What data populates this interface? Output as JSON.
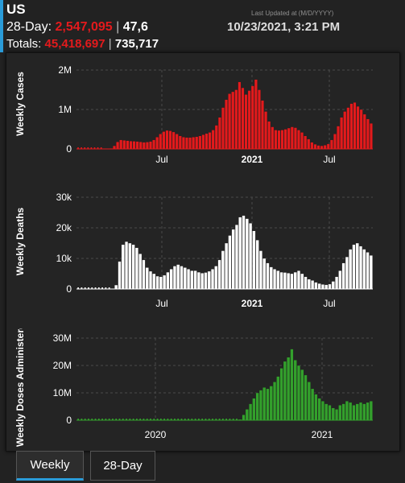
{
  "header": {
    "title": "US",
    "day28_label": "28-Day: ",
    "day28_cases": "2,547,095",
    "day28_sep": " | ",
    "day28_deaths": "47,6",
    "totals_label": "Totals: ",
    "totals_cases": "45,418,697",
    "totals_sep": " | ",
    "totals_deaths": "735,717",
    "updated_label": "Last Updated at (M/D/YYYY)",
    "updated_time": "10/23/2021, 3:21 PM"
  },
  "colors": {
    "accent": "#2a9bd8",
    "cases": "#e31a1c",
    "deaths": "#ffffff",
    "vaccines": "#33a02c"
  },
  "tabs": [
    {
      "label": "Weekly",
      "active": true
    },
    {
      "label": "28-Day",
      "active": false
    }
  ],
  "chart_data": [
    {
      "type": "bar",
      "ylabel": "Weekly Cases",
      "x_ticks": [
        "Jul",
        "2021",
        "Jul"
      ],
      "y_ticks": [
        "0",
        "1M",
        "2M"
      ],
      "ylim": [
        0,
        2000000
      ],
      "grid": true,
      "color": "#e31a1c",
      "x_start": "2020-01-22",
      "x_end": "2021-10-23",
      "values": [
        0,
        0,
        0,
        0,
        0,
        0,
        0,
        0,
        1000,
        5000,
        15000,
        80000,
        180000,
        230000,
        220000,
        210000,
        200000,
        195000,
        190000,
        180000,
        170000,
        175000,
        190000,
        230000,
        300000,
        380000,
        440000,
        470000,
        460000,
        430000,
        380000,
        330000,
        300000,
        290000,
        290000,
        300000,
        310000,
        330000,
        360000,
        390000,
        420000,
        480000,
        600000,
        800000,
        1050000,
        1250000,
        1400000,
        1450000,
        1500000,
        1700000,
        1550000,
        1380000,
        1480000,
        1600000,
        1760000,
        1500000,
        1230000,
        950000,
        700000,
        560000,
        480000,
        470000,
        480000,
        500000,
        530000,
        560000,
        540000,
        480000,
        420000,
        330000,
        250000,
        170000,
        120000,
        90000,
        80000,
        95000,
        130000,
        230000,
        380000,
        580000,
        800000,
        950000,
        1050000,
        1150000,
        1180000,
        1080000,
        1000000,
        880000,
        760000,
        650000
      ],
      "markers": 8
    },
    {
      "type": "bar",
      "ylabel": "Weekly Deaths",
      "x_ticks": [
        "Jul",
        "2021",
        "Jul"
      ],
      "y_ticks": [
        "0",
        "10k",
        "20k",
        "30k"
      ],
      "ylim": [
        0,
        30000
      ],
      "grid": true,
      "color": "#ffffff",
      "x_start": "2020-01-22",
      "x_end": "2021-10-23",
      "values": [
        0,
        0,
        0,
        0,
        0,
        0,
        0,
        0,
        0,
        0,
        60,
        1300,
        9000,
        14500,
        15500,
        15000,
        14500,
        13500,
        11500,
        9500,
        7000,
        5800,
        5000,
        4200,
        4000,
        4500,
        5500,
        6500,
        7500,
        8000,
        7500,
        7000,
        6500,
        6000,
        6000,
        5500,
        5200,
        5400,
        5800,
        6500,
        7500,
        9500,
        12500,
        15000,
        17500,
        19500,
        21000,
        23500,
        24000,
        23000,
        21500,
        19000,
        16000,
        12500,
        10000,
        8500,
        7200,
        6500,
        6000,
        5500,
        5400,
        5200,
        5000,
        5500,
        6000,
        5000,
        4000,
        3200,
        2800,
        2200,
        1800,
        1500,
        1400,
        1600,
        2500,
        4000,
        6000,
        8500,
        10500,
        13000,
        14500,
        15000,
        14000,
        13000,
        12000,
        11000
      ],
      "markers": 10
    },
    {
      "type": "bar",
      "ylabel": "Weekly Doses Administered",
      "x_ticks": [
        "2020",
        "2021"
      ],
      "y_ticks": [
        "0",
        "10M",
        "20M",
        "30M"
      ],
      "ylim": [
        0,
        30000000
      ],
      "grid": true,
      "color": "#33a02c",
      "x_start": "2020-01-22",
      "x_end": "2021-10-23",
      "values": [
        0,
        0,
        0,
        0,
        0,
        0,
        0,
        0,
        0,
        0,
        0,
        0,
        0,
        0,
        0,
        0,
        0,
        0,
        0,
        0,
        0,
        0,
        0,
        0,
        0,
        0,
        0,
        0,
        0,
        0,
        0,
        0,
        0,
        0,
        0,
        0,
        0,
        0,
        0,
        0,
        0,
        0,
        0,
        0,
        0,
        0,
        0,
        300000,
        2000000,
        4000000,
        6000000,
        8000000,
        10000000,
        11000000,
        12000000,
        11500000,
        12500000,
        14000000,
        16000000,
        19000000,
        21500000,
        23000000,
        26000000,
        22000000,
        20000000,
        18500000,
        16500000,
        14000000,
        11500000,
        9500000,
        8000000,
        7000000,
        6000000,
        5500000,
        4500000,
        4000000,
        5500000,
        6000000,
        7000000,
        6500000,
        5500000,
        6000000,
        6500000,
        6000000,
        6500000,
        7000000
      ],
      "markers": 47
    }
  ]
}
